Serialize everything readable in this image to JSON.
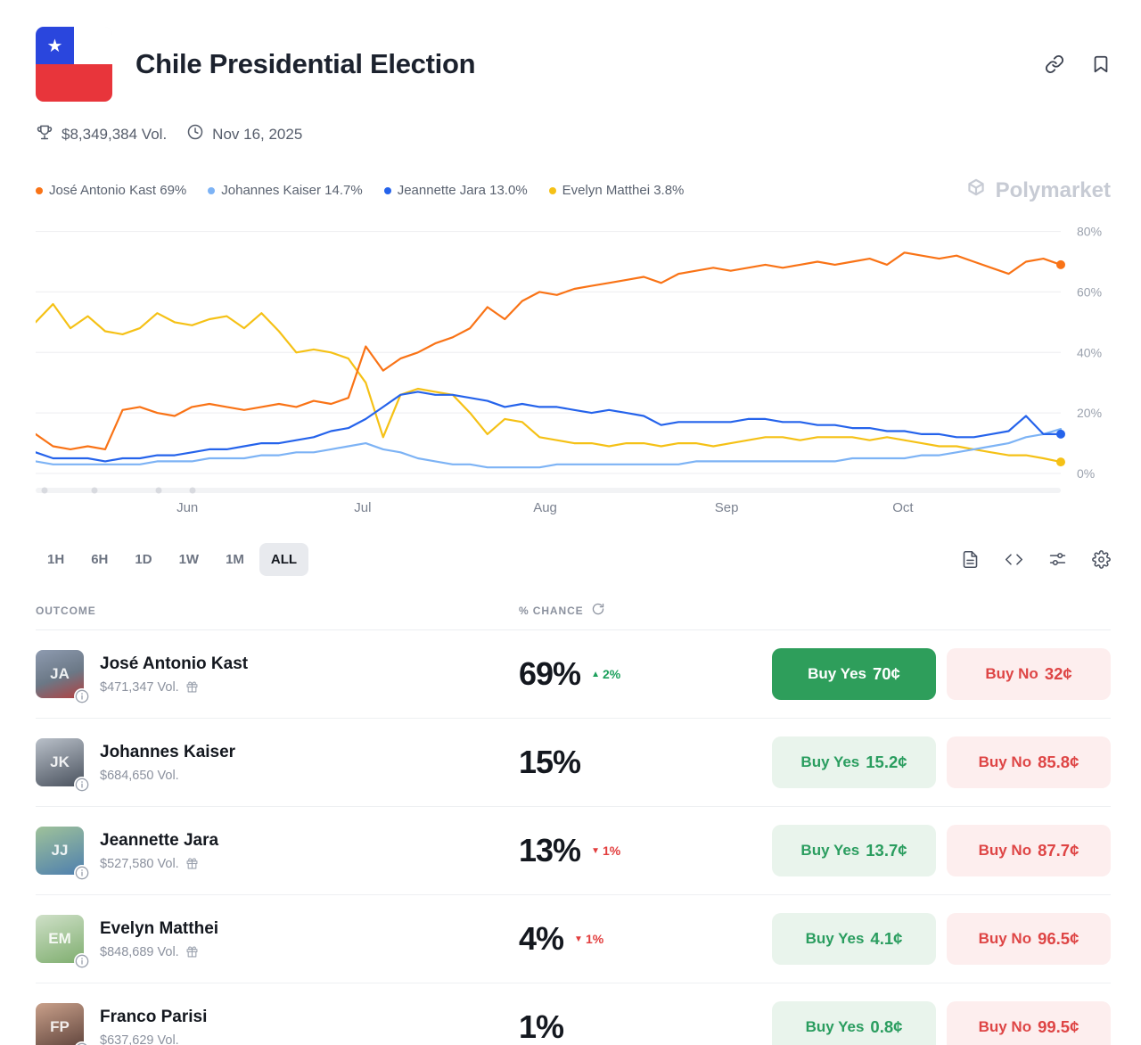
{
  "header": {
    "title": "Chile Presidential Election",
    "volume": "$8,349,384 Vol.",
    "date": "Nov 16, 2025"
  },
  "watermark": "Polymarket",
  "icons": {
    "flag_star": "★",
    "up_triangle": "▲",
    "down_triangle": "▼"
  },
  "legend": [
    {
      "label": "José Antonio Kast 69%",
      "color": "#f97316"
    },
    {
      "label": "Johannes Kaiser 14.7%",
      "color": "#7db3f5"
    },
    {
      "label": "Jeannette Jara 13.0%",
      "color": "#2563eb"
    },
    {
      "label": "Evelyn Matthei 3.8%",
      "color": "#f5c116"
    }
  ],
  "chart_data": {
    "type": "line",
    "title": "Chile Presidential Election — win probability over time",
    "ylim": [
      0,
      84
    ],
    "yticks": [
      "0%",
      "20%",
      "40%",
      "60%",
      "80%"
    ],
    "xticks": [
      "Jun",
      "Jul",
      "Aug",
      "Sep",
      "Oct"
    ],
    "xtick_pos": [
      0.148,
      0.319,
      0.497,
      0.674,
      0.846
    ],
    "grid": true,
    "legend_position": "top-left",
    "series": [
      {
        "name": "Evelyn Matthei",
        "color": "#f5c116",
        "end_dot": true,
        "values": [
          50,
          56,
          48,
          52,
          47,
          46,
          48,
          53,
          50,
          49,
          51,
          52,
          48,
          53,
          47,
          40,
          41,
          40,
          38,
          30,
          12,
          26,
          28,
          27,
          26,
          20,
          13,
          18,
          17,
          12,
          11,
          10,
          10,
          9,
          10,
          10,
          9,
          10,
          10,
          9,
          10,
          11,
          12,
          12,
          11,
          12,
          12,
          12,
          11,
          12,
          11,
          10,
          9,
          9,
          8,
          7,
          6,
          6,
          5,
          3.8
        ]
      },
      {
        "name": "Johannes Kaiser",
        "color": "#7db3f5",
        "end_dot": false,
        "values": [
          4,
          3,
          3,
          3,
          3,
          3,
          3,
          4,
          4,
          4,
          5,
          5,
          5,
          6,
          6,
          7,
          7,
          8,
          9,
          10,
          8,
          7,
          5,
          4,
          3,
          3,
          2,
          2,
          2,
          2,
          3,
          3,
          3,
          3,
          3,
          3,
          3,
          3,
          4,
          4,
          4,
          4,
          4,
          4,
          4,
          4,
          4,
          5,
          5,
          5,
          5,
          6,
          6,
          7,
          8,
          9,
          10,
          12,
          13,
          14.7
        ]
      },
      {
        "name": "Jeannette Jara",
        "color": "#2563eb",
        "end_dot": true,
        "values": [
          7,
          5,
          5,
          5,
          4,
          5,
          5,
          6,
          6,
          7,
          8,
          8,
          9,
          10,
          10,
          11,
          12,
          14,
          15,
          18,
          22,
          26,
          27,
          26,
          26,
          25,
          24,
          22,
          23,
          22,
          22,
          21,
          20,
          21,
          20,
          19,
          16,
          17,
          17,
          17,
          17,
          18,
          18,
          17,
          17,
          16,
          16,
          15,
          15,
          14,
          14,
          13,
          13,
          12,
          12,
          13,
          14,
          19,
          13,
          13
        ]
      },
      {
        "name": "José Antonio Kast",
        "color": "#f97316",
        "end_dot": true,
        "values": [
          13,
          9,
          8,
          9,
          8,
          21,
          22,
          20,
          19,
          22,
          23,
          22,
          21,
          22,
          23,
          22,
          24,
          23,
          25,
          42,
          34,
          38,
          40,
          43,
          45,
          48,
          55,
          51,
          57,
          60,
          59,
          61,
          62,
          63,
          64,
          65,
          63,
          66,
          67,
          68,
          67,
          68,
          69,
          68,
          69,
          70,
          69,
          70,
          71,
          69,
          73,
          72,
          71,
          72,
          70,
          68,
          66,
          70,
          71,
          69
        ]
      }
    ]
  },
  "timeframes": {
    "options": [
      "1H",
      "6H",
      "1D",
      "1W",
      "1M",
      "ALL"
    ],
    "selected": "ALL"
  },
  "table": {
    "outcome_header": "OUTCOME",
    "chance_header": "% CHANCE",
    "rows": [
      {
        "name": "José Antonio Kast",
        "volume": "$471,347 Vol.",
        "chance": "69%",
        "change": "2%",
        "change_dir": "up",
        "yes_label": "Buy Yes",
        "yes_price": "70¢",
        "no_label": "Buy No",
        "no_price": "32¢"
      },
      {
        "name": "Johannes Kaiser",
        "volume": "$684,650 Vol.",
        "chance": "15%",
        "yes_label": "Buy Yes",
        "yes_price": "15.2¢",
        "no_label": "Buy No",
        "no_price": "85.8¢"
      },
      {
        "name": "Jeannette Jara",
        "volume": "$527,580 Vol.",
        "chance": "13%",
        "change": "1%",
        "change_dir": "down",
        "yes_label": "Buy Yes",
        "yes_price": "13.7¢",
        "no_label": "Buy No",
        "no_price": "87.7¢"
      },
      {
        "name": "Evelyn Matthei",
        "volume": "$848,689 Vol.",
        "chance": "4%",
        "change": "1%",
        "change_dir": "down",
        "yes_label": "Buy Yes",
        "yes_price": "4.1¢",
        "no_label": "Buy No",
        "no_price": "96.5¢"
      },
      {
        "name": "Franco Parisi",
        "volume": "$637,629 Vol.",
        "chance": "1%",
        "yes_label": "Buy Yes",
        "yes_price": "0.8¢",
        "no_label": "Buy No",
        "no_price": "99.5¢"
      }
    ]
  },
  "colors": {
    "buy_yes_green": "#2e9e5b",
    "buy_yes_light_bg": "#e9f4ec",
    "buy_no_red": "#de4545",
    "buy_no_light_bg": "#fdeeee",
    "up_green": "#1ca05c",
    "down_red": "#e23d3d"
  }
}
